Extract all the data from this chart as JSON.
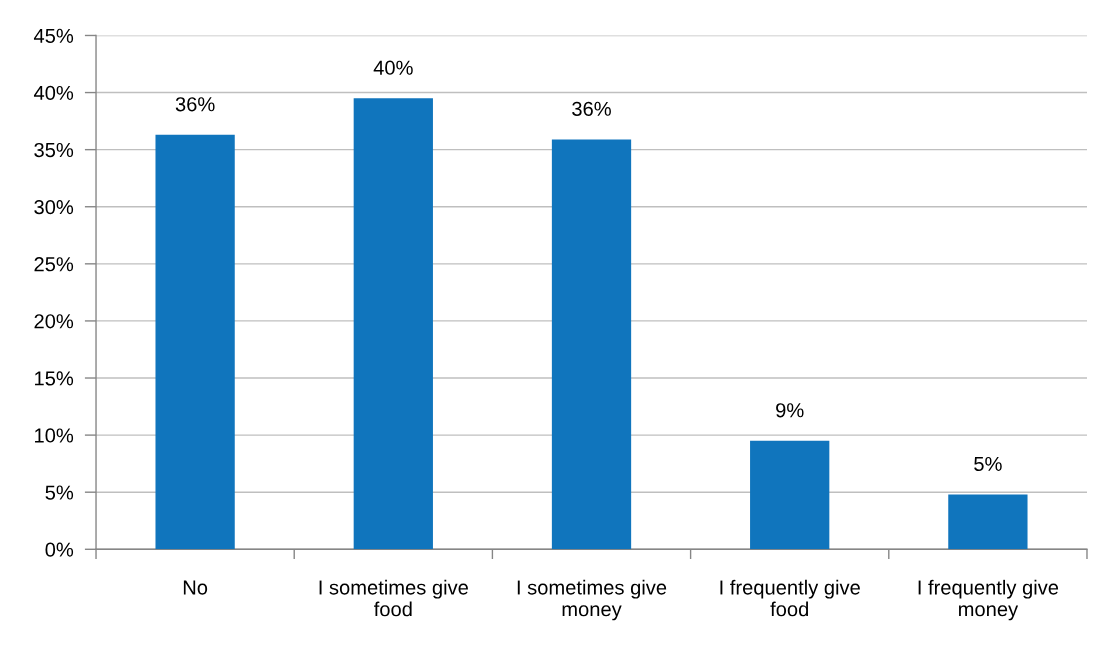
{
  "chart_data": {
    "type": "bar",
    "categories": [
      "No",
      "I sometimes give\nfood",
      "I sometimes give\nmoney",
      "I frequently give\nfood",
      "I frequently give\nmoney"
    ],
    "values": [
      36.3,
      39.5,
      35.9,
      9.5,
      4.8
    ],
    "value_labels": [
      "36%",
      "40%",
      "36%",
      "9%",
      "5%"
    ],
    "color": "#1075bd",
    "ylim": [
      0,
      45
    ],
    "yticks": [
      {
        "value": 0,
        "label": "0%"
      },
      {
        "value": 5,
        "label": "5%"
      },
      {
        "value": 10,
        "label": "10%"
      },
      {
        "value": 15,
        "label": "15%"
      },
      {
        "value": 20,
        "label": "20%"
      },
      {
        "value": 25,
        "label": "25%"
      },
      {
        "value": 30,
        "label": "30%"
      },
      {
        "value": 35,
        "label": "35%"
      },
      {
        "value": 40,
        "label": "40%"
      },
      {
        "value": 45,
        "label": "45%"
      }
    ],
    "grid": "y"
  }
}
